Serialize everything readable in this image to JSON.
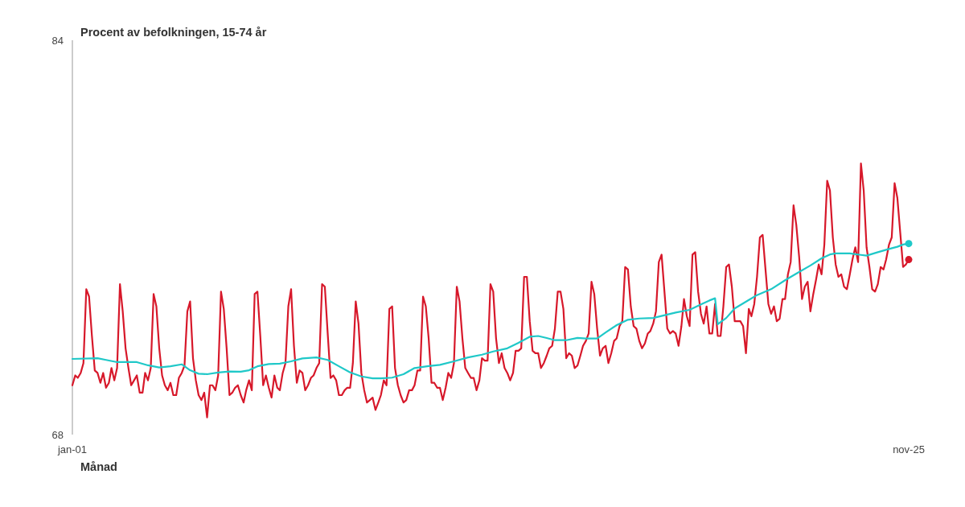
{
  "chart_data": {
    "type": "line",
    "ylabel": "Procent av befolkningen, 15-74 år",
    "xlabel": "Månad",
    "xlim": [
      "2001-01",
      "2025-11"
    ],
    "xticks": [
      {
        "value": "2001-01",
        "label": "jan-01"
      },
      {
        "value": "2025-11",
        "label": "nov-25"
      }
    ],
    "ylim": [
      68,
      84
    ],
    "yticks": [
      68,
      84
    ],
    "x": [
      "2001-01",
      "2001-02",
      "2001-03",
      "2001-04",
      "2001-05",
      "2001-06",
      "2001-07",
      "2001-08",
      "2001-09",
      "2001-10",
      "2001-11",
      "2001-12",
      "2002-01",
      "2002-02",
      "2002-03",
      "2002-04",
      "2002-05",
      "2002-06",
      "2002-07",
      "2002-08",
      "2002-09",
      "2002-10",
      "2002-11",
      "2002-12",
      "2003-01",
      "2003-02",
      "2003-03",
      "2003-04",
      "2003-05",
      "2003-06",
      "2003-07",
      "2003-08",
      "2003-09",
      "2003-10",
      "2003-11",
      "2003-12",
      "2004-01",
      "2004-02",
      "2004-03",
      "2004-04",
      "2004-05",
      "2004-06",
      "2004-07",
      "2004-08",
      "2004-09",
      "2004-10",
      "2004-11",
      "2004-12",
      "2005-01",
      "2005-02",
      "2005-03",
      "2005-04",
      "2005-05",
      "2005-06",
      "2005-07",
      "2005-08",
      "2005-09",
      "2005-10",
      "2005-11",
      "2005-12",
      "2006-01",
      "2006-02",
      "2006-03",
      "2006-04",
      "2006-05",
      "2006-06",
      "2006-07",
      "2006-08",
      "2006-09",
      "2006-10",
      "2006-11",
      "2006-12",
      "2007-01",
      "2007-02",
      "2007-03",
      "2007-04",
      "2007-05",
      "2007-06",
      "2007-07",
      "2007-08",
      "2007-09",
      "2007-10",
      "2007-11",
      "2007-12",
      "2008-01",
      "2008-02",
      "2008-03",
      "2008-04",
      "2008-05",
      "2008-06",
      "2008-07",
      "2008-08",
      "2008-09",
      "2008-10",
      "2008-11",
      "2008-12",
      "2009-01",
      "2009-02",
      "2009-03",
      "2009-04",
      "2009-05",
      "2009-06",
      "2009-07",
      "2009-08",
      "2009-09",
      "2009-10",
      "2009-11",
      "2009-12",
      "2010-01",
      "2010-02",
      "2010-03",
      "2010-04",
      "2010-05",
      "2010-06",
      "2010-07",
      "2010-08",
      "2010-09",
      "2010-10",
      "2010-11",
      "2010-12",
      "2011-01",
      "2011-02",
      "2011-03",
      "2011-04",
      "2011-05",
      "2011-06",
      "2011-07",
      "2011-08",
      "2011-09",
      "2011-10",
      "2011-11",
      "2011-12",
      "2012-01",
      "2012-02",
      "2012-03",
      "2012-04",
      "2012-05",
      "2012-06",
      "2012-07",
      "2012-08",
      "2012-09",
      "2012-10",
      "2012-11",
      "2012-12",
      "2013-01",
      "2013-02",
      "2013-03",
      "2013-04",
      "2013-05",
      "2013-06",
      "2013-07",
      "2013-08",
      "2013-09",
      "2013-10",
      "2013-11",
      "2013-12",
      "2014-01",
      "2014-02",
      "2014-03",
      "2014-04",
      "2014-05",
      "2014-06",
      "2014-07",
      "2014-08",
      "2014-09",
      "2014-10",
      "2014-11",
      "2014-12",
      "2015-01",
      "2015-02",
      "2015-03",
      "2015-04",
      "2015-05",
      "2015-06",
      "2015-07",
      "2015-08",
      "2015-09",
      "2015-10",
      "2015-11",
      "2015-12",
      "2016-01",
      "2016-02",
      "2016-03",
      "2016-04",
      "2016-05",
      "2016-06",
      "2016-07",
      "2016-08",
      "2016-09",
      "2016-10",
      "2016-11",
      "2016-12",
      "2017-01",
      "2017-02",
      "2017-03",
      "2017-04",
      "2017-05",
      "2017-06",
      "2017-07",
      "2017-08",
      "2017-09",
      "2017-10",
      "2017-11",
      "2017-12",
      "2018-01",
      "2018-02",
      "2018-03",
      "2018-04",
      "2018-05",
      "2018-06",
      "2018-07",
      "2018-08",
      "2018-09",
      "2018-10",
      "2018-11",
      "2018-12",
      "2019-01",
      "2019-02",
      "2019-03",
      "2019-04",
      "2019-05",
      "2019-06",
      "2019-07",
      "2019-08",
      "2019-09",
      "2019-10",
      "2019-11",
      "2019-12",
      "2020-01",
      "2020-02",
      "2020-03",
      "2020-04",
      "2020-05",
      "2020-06",
      "2020-07",
      "2020-08",
      "2020-09",
      "2020-10",
      "2020-11",
      "2020-12",
      "2021-01",
      "2021-02",
      "2021-03",
      "2021-04",
      "2021-05",
      "2021-06",
      "2021-07",
      "2021-08",
      "2021-09",
      "2021-10",
      "2021-11",
      "2021-12",
      "2022-01",
      "2022-02",
      "2022-03",
      "2022-04",
      "2022-05",
      "2022-06",
      "2022-07",
      "2022-08",
      "2022-09",
      "2022-10",
      "2022-11",
      "2022-12",
      "2023-01",
      "2023-02",
      "2023-03",
      "2023-04",
      "2023-05",
      "2023-06",
      "2023-07",
      "2023-08",
      "2023-09",
      "2023-10",
      "2023-11",
      "2023-12",
      "2024-01",
      "2024-02",
      "2024-03",
      "2024-04",
      "2024-05",
      "2024-06",
      "2024-07",
      "2024-08",
      "2024-09",
      "2024-10",
      "2024-11",
      "2024-12",
      "2025-01",
      "2025-02",
      "2025-03",
      "2025-04",
      "2025-05",
      "2025-06",
      "2025-07",
      "2025-08",
      "2025-09",
      "2025-10",
      "2025-11"
    ],
    "series": [
      {
        "color": "#d7182a",
        "values": [
          70.0,
          70.4,
          70.3,
          70.5,
          70.9,
          73.9,
          73.6,
          72.0,
          70.6,
          70.5,
          70.1,
          70.5,
          69.9,
          70.1,
          70.7,
          70.2,
          70.7,
          74.1,
          73.0,
          71.5,
          70.7,
          70.0,
          70.2,
          70.4,
          69.7,
          69.7,
          70.5,
          70.2,
          70.7,
          73.7,
          73.2,
          71.5,
          70.4,
          70.0,
          69.8,
          70.1,
          69.6,
          69.6,
          70.3,
          70.5,
          70.8,
          73.0,
          73.4,
          71.1,
          70.2,
          69.6,
          69.4,
          69.7,
          68.7,
          70.0,
          70.0,
          69.8,
          70.4,
          73.8,
          73.1,
          71.5,
          69.6,
          69.7,
          69.9,
          70.0,
          69.6,
          69.3,
          69.8,
          70.2,
          69.8,
          73.7,
          73.8,
          72.0,
          70.0,
          70.4,
          69.9,
          69.5,
          70.4,
          69.9,
          69.8,
          70.5,
          70.9,
          73.2,
          73.9,
          71.6,
          70.1,
          70.6,
          70.5,
          69.8,
          70.0,
          70.3,
          70.4,
          70.7,
          70.9,
          74.1,
          74.0,
          72.1,
          70.3,
          70.4,
          70.2,
          69.6,
          69.6,
          69.8,
          69.9,
          69.9,
          70.9,
          73.4,
          72.5,
          70.5,
          69.8,
          69.3,
          69.4,
          69.5,
          69.0,
          69.3,
          69.6,
          70.2,
          70.0,
          73.1,
          73.2,
          70.7,
          70.0,
          69.6,
          69.3,
          69.4,
          69.8,
          69.8,
          70.0,
          70.6,
          70.6,
          73.6,
          73.2,
          71.9,
          70.1,
          70.1,
          69.9,
          69.9,
          69.4,
          69.9,
          70.5,
          70.3,
          70.9,
          74.0,
          73.4,
          71.9,
          70.7,
          70.5,
          70.3,
          70.3,
          69.8,
          70.2,
          71.1,
          71.0,
          71.0,
          74.1,
          73.8,
          71.9,
          70.9,
          71.3,
          70.7,
          70.5,
          70.2,
          70.5,
          71.4,
          71.4,
          71.5,
          74.4,
          74.4,
          72.6,
          71.4,
          71.3,
          71.3,
          70.7,
          70.9,
          71.2,
          71.5,
          71.6,
          72.3,
          73.8,
          73.8,
          73.1,
          71.1,
          71.3,
          71.2,
          70.7,
          70.8,
          71.2,
          71.6,
          71.8,
          72.1,
          74.2,
          73.7,
          72.3,
          71.2,
          71.5,
          71.6,
          70.9,
          71.3,
          71.8,
          71.9,
          72.4,
          72.6,
          74.8,
          74.7,
          73.2,
          72.4,
          72.3,
          71.8,
          71.5,
          71.7,
          72.1,
          72.2,
          72.5,
          73.0,
          75.0,
          75.3,
          73.8,
          72.3,
          72.1,
          72.2,
          72.1,
          71.6,
          72.4,
          73.5,
          72.8,
          72.4,
          75.3,
          75.4,
          73.8,
          72.9,
          72.5,
          73.2,
          72.1,
          72.1,
          73.3,
          72.0,
          72.0,
          73.2,
          74.8,
          74.9,
          74.0,
          72.6,
          72.6,
          72.6,
          72.4,
          71.3,
          73.1,
          72.8,
          73.3,
          74.4,
          76.0,
          76.1,
          74.7,
          73.3,
          72.9,
          73.2,
          72.6,
          72.7,
          73.5,
          73.5,
          74.5,
          75.0,
          77.3,
          76.5,
          75.2,
          73.5,
          74.0,
          74.2,
          73.0,
          73.7,
          74.3,
          74.9,
          74.5,
          75.7,
          78.3,
          77.9,
          76.0,
          74.9,
          74.4,
          74.5,
          74.0,
          73.9,
          74.5,
          75.1,
          75.6,
          75.0,
          79.0,
          77.9,
          75.6,
          74.8,
          73.9,
          73.8,
          74.1,
          74.8,
          74.7,
          75.1,
          75.7,
          76.0,
          78.2,
          77.6,
          76.2,
          74.8,
          74.9,
          75.1
        ]
      },
      {
        "color": "#1fc8c8",
        "x": [
          "2001-01",
          "2001-10",
          "2002-01",
          "2002-05",
          "2002-12",
          "2003-04",
          "2003-08",
          "2003-12",
          "2004-04",
          "2004-07",
          "2004-10",
          "2005-01",
          "2005-05",
          "2005-09",
          "2006-01",
          "2006-04",
          "2006-07",
          "2006-11",
          "2007-03",
          "2007-07",
          "2007-11",
          "2008-04",
          "2008-08",
          "2008-12",
          "2009-04",
          "2009-08",
          "2009-12",
          "2010-03",
          "2010-07",
          "2010-11",
          "2011-03",
          "2011-08",
          "2011-12",
          "2012-05",
          "2012-10",
          "2013-03",
          "2013-07",
          "2013-12",
          "2014-04",
          "2014-08",
          "2014-11",
          "2015-02",
          "2015-05",
          "2015-09",
          "2016-01",
          "2016-04",
          "2016-08",
          "2016-11",
          "2017-03",
          "2017-07",
          "2017-11",
          "2018-04",
          "2018-09",
          "2018-12",
          "2019-05",
          "2019-09",
          "2019-12",
          "2020-02",
          "2020-03",
          "2020-06",
          "2020-09",
          "2021-02",
          "2021-05",
          "2021-10",
          "2022-03",
          "2022-07",
          "2022-12",
          "2023-04",
          "2023-07",
          "2023-09",
          "2024-02",
          "2024-06",
          "2024-08",
          "2024-12",
          "2025-04",
          "2025-07",
          "2025-09",
          "2025-11"
        ],
        "values": [
          71.07,
          71.1,
          71.03,
          70.94,
          70.94,
          70.81,
          70.72,
          70.77,
          70.85,
          70.61,
          70.47,
          70.45,
          70.52,
          70.56,
          70.55,
          70.61,
          70.77,
          70.86,
          70.88,
          70.97,
          71.09,
          71.13,
          71.03,
          70.77,
          70.52,
          70.36,
          70.28,
          70.28,
          70.31,
          70.45,
          70.7,
          70.78,
          70.83,
          70.97,
          71.13,
          71.24,
          71.37,
          71.5,
          71.72,
          71.97,
          72.0,
          71.92,
          71.83,
          71.83,
          71.92,
          71.9,
          71.9,
          72.14,
          72.44,
          72.66,
          72.71,
          72.73,
          72.87,
          72.95,
          73.06,
          73.28,
          73.44,
          73.53,
          72.48,
          72.73,
          73.12,
          73.46,
          73.66,
          73.9,
          74.26,
          74.53,
          74.86,
          75.15,
          75.31,
          75.35,
          75.35,
          75.29,
          75.26,
          75.4,
          75.53,
          75.62,
          75.71,
          75.75
        ]
      },
      {
        "type": "scatter",
        "marker": "circle",
        "color": "#d7182a",
        "x": [
          "2025-11"
        ],
        "values": [
          75.1
        ]
      },
      {
        "type": "scatter",
        "marker": "circle",
        "color": "#1fc8c8",
        "x": [
          "2025-11"
        ],
        "values": [
          75.75
        ]
      }
    ]
  }
}
